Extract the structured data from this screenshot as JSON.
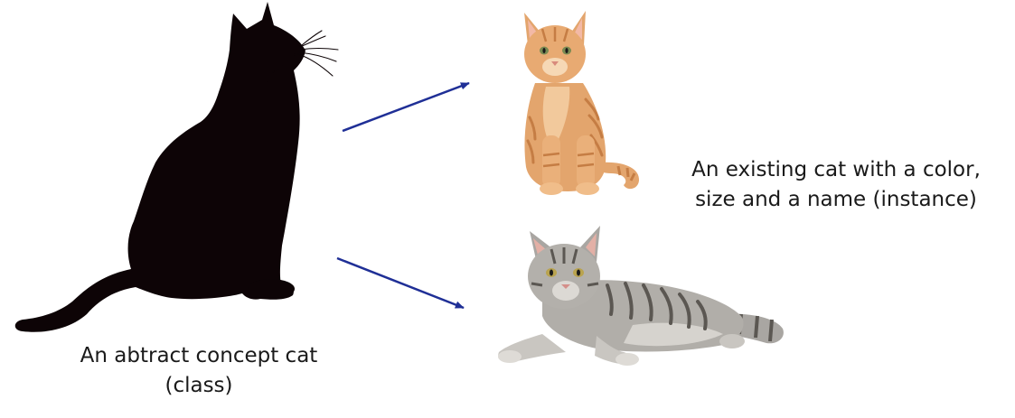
{
  "class_caption": {
    "line1": "An abtract concept cat",
    "line2": "(class)"
  },
  "instance_caption": {
    "line1": "An existing cat with a color,",
    "line2": "size and a name (instance)"
  },
  "figures": {
    "class_figure": "black-cat-silhouette",
    "instance_figure_top": "orange-tabby-kitten-sitting",
    "instance_figure_bottom": "grey-tabby-cat-lying"
  },
  "colors": {
    "silhouette": "#0d0406",
    "arrow": "#1f2f96",
    "orange_fur": "#e3a56d",
    "orange_stripe": "#c57d44",
    "grey_fur": "#a9a6a2",
    "grey_stripe": "#5b5752",
    "text": "#1a1a1a"
  }
}
